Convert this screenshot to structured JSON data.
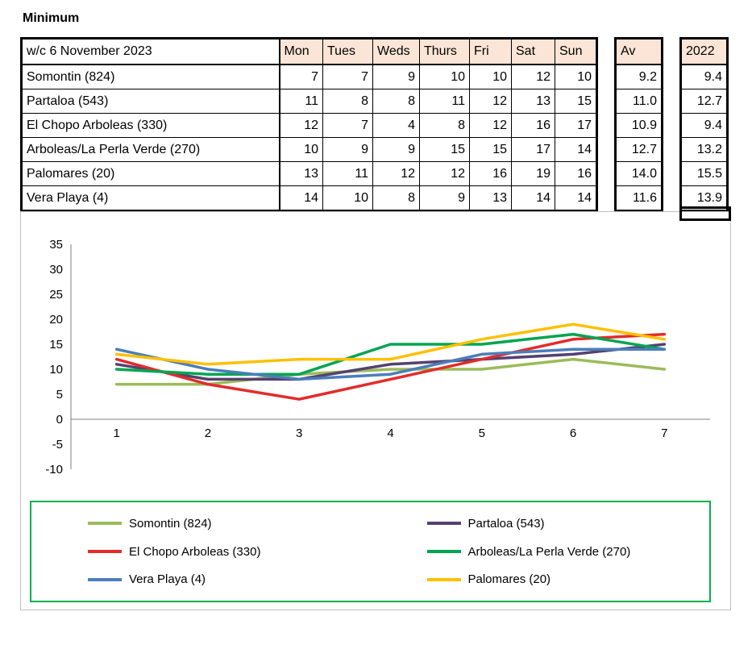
{
  "title": "Minimum",
  "table": {
    "week_label": "w/c 6 November 2023",
    "days": [
      "Mon",
      "Tues",
      "Weds",
      "Thurs",
      "Fri",
      "Sat",
      "Sun"
    ],
    "av_label": "Av",
    "year_label": "2022",
    "header_bg": "#FBE5D6",
    "rows": [
      {
        "name": "Somontin (824)",
        "values": [
          7,
          7,
          9,
          10,
          10,
          12,
          10
        ],
        "av": "9.2",
        "prev": "9.4"
      },
      {
        "name": "Partaloa (543)",
        "values": [
          11,
          8,
          8,
          11,
          12,
          13,
          15
        ],
        "av": "11.0",
        "prev": "12.7"
      },
      {
        "name": "El Chopo Arboleas (330)",
        "values": [
          12,
          7,
          4,
          8,
          12,
          16,
          17
        ],
        "av": "10.9",
        "prev": "9.4"
      },
      {
        "name": "Arboleas/La Perla Verde (270)",
        "values": [
          10,
          9,
          9,
          15,
          15,
          17,
          14
        ],
        "av": "12.7",
        "prev": "13.2"
      },
      {
        "name": "Palomares (20)",
        "values": [
          13,
          11,
          12,
          12,
          16,
          19,
          16
        ],
        "av": "14.0",
        "prev": "15.5"
      },
      {
        "name": "Vera Playa (4)",
        "values": [
          14,
          10,
          8,
          9,
          13,
          14,
          14
        ],
        "av": "11.6",
        "prev": "13.9"
      }
    ]
  },
  "chart_data": {
    "type": "line",
    "title": "",
    "xlabel": "",
    "ylabel": "",
    "x": [
      1,
      2,
      3,
      4,
      5,
      6,
      7
    ],
    "ylim": [
      -10,
      35
    ],
    "ytick_step": 5,
    "grid": false,
    "legend_position": "bottom",
    "series": [
      {
        "name": "Somontin (824)",
        "color": "#9BBB59",
        "values": [
          7,
          7,
          9,
          10,
          10,
          12,
          10
        ]
      },
      {
        "name": "Partaloa (543)",
        "color": "#554170",
        "values": [
          11,
          8,
          8,
          11,
          12,
          13,
          15
        ]
      },
      {
        "name": "El Chopo Arboleas (330)",
        "color": "#E32B2A",
        "values": [
          12,
          7,
          4,
          8,
          12,
          16,
          17
        ]
      },
      {
        "name": "Arboleas/La Perla Verde (270)",
        "color": "#00A550",
        "values": [
          10,
          9,
          9,
          15,
          15,
          17,
          14
        ]
      },
      {
        "name": "Vera Playa (4)",
        "color": "#4A7EBB",
        "values": [
          14,
          10,
          8,
          9,
          13,
          14,
          14
        ]
      },
      {
        "name": "Palomares (20)",
        "color": "#FFC000",
        "values": [
          13,
          11,
          12,
          12,
          16,
          19,
          16
        ]
      }
    ]
  },
  "legend": {
    "border_color": "#00B050",
    "items": [
      {
        "label": "Somontin (824)",
        "color": "#9BBB59"
      },
      {
        "label": "Partaloa (543)",
        "color": "#554170"
      },
      {
        "label": "El Chopo Arboleas (330)",
        "color": "#E32B2A"
      },
      {
        "label": "Arboleas/La Perla Verde (270)",
        "color": "#00A550"
      },
      {
        "label": "Vera Playa (4)",
        "color": "#4A7EBB"
      },
      {
        "label": "Palomares (20)",
        "color": "#FFC000"
      }
    ]
  }
}
